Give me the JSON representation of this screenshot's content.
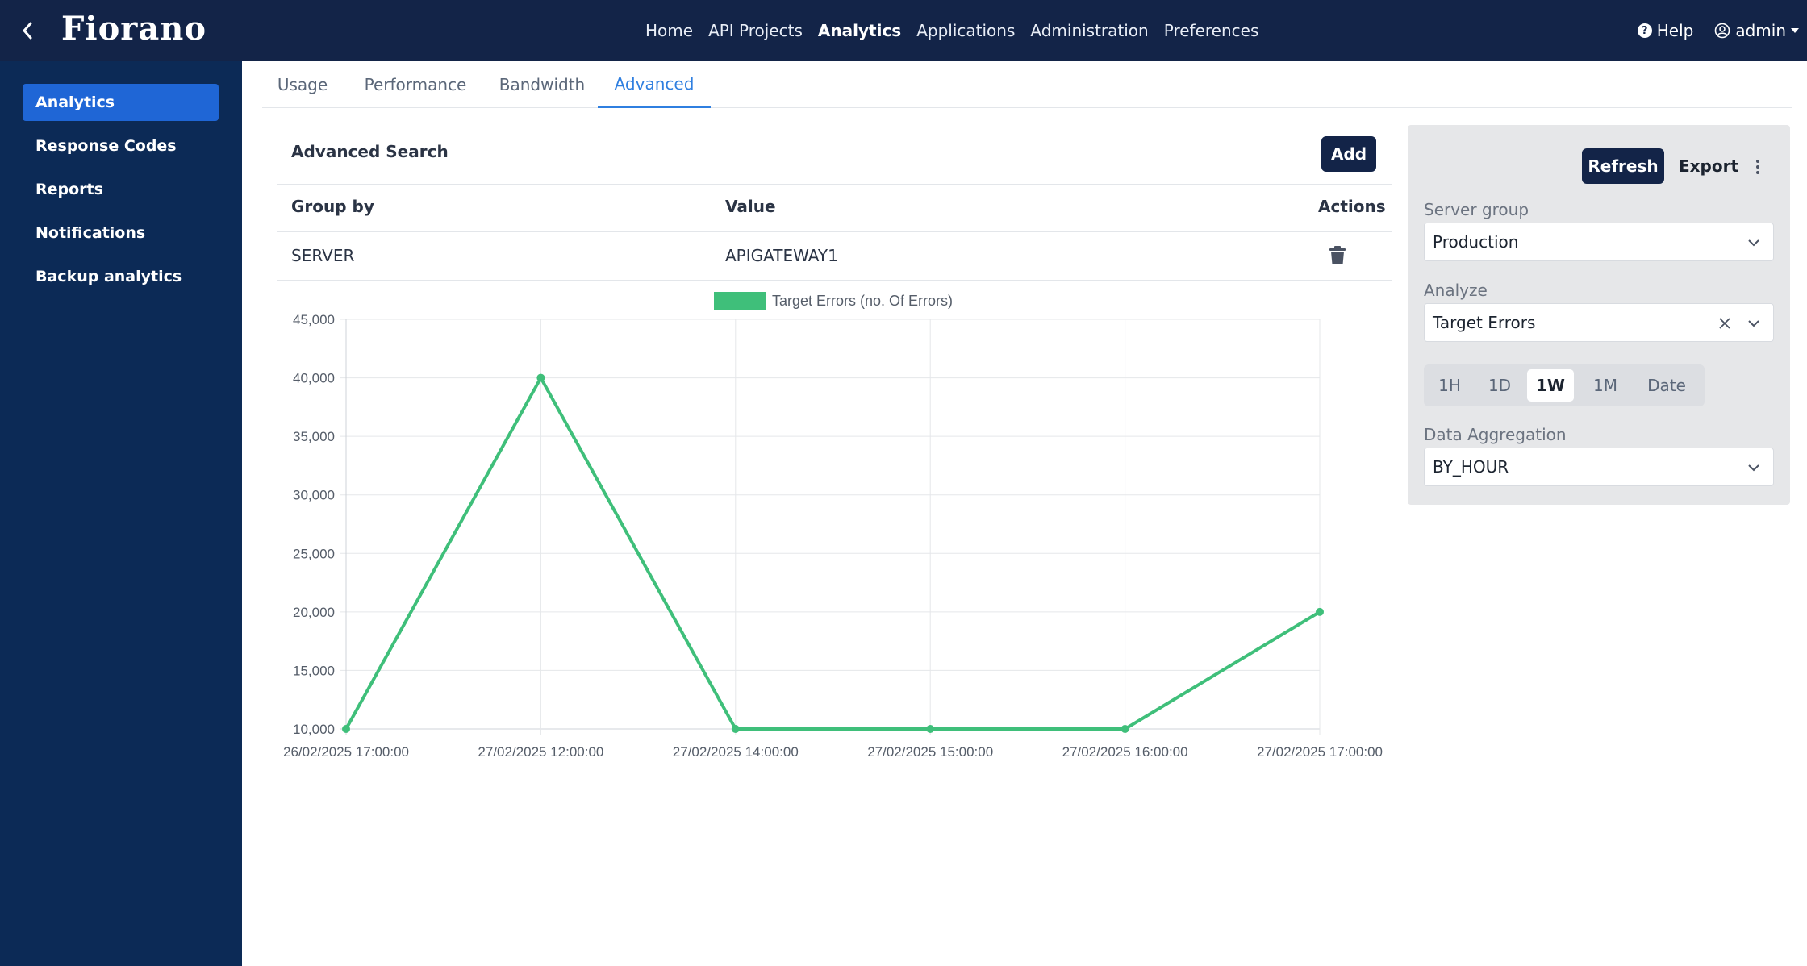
{
  "header": {
    "logo_text": "Fiorano",
    "nav": [
      "Home",
      "API Projects",
      "Analytics",
      "Applications",
      "Administration",
      "Preferences"
    ],
    "active_nav": "Analytics",
    "help_label": "Help",
    "user_label": "admin",
    "colors": {
      "bar": "#132448"
    }
  },
  "sidebar": {
    "items": [
      {
        "label": "Analytics",
        "active": true
      },
      {
        "label": "Response Codes"
      },
      {
        "label": "Reports"
      },
      {
        "label": "Notifications"
      },
      {
        "label": "Backup analytics"
      }
    ],
    "colors": {
      "background": "#0c2a56",
      "active": "#1f66d6"
    }
  },
  "tabs": [
    "Usage",
    "Performance",
    "Bandwidth",
    "Advanced"
  ],
  "active_tab": "Advanced",
  "advanced_search": {
    "title": "Advanced Search",
    "add_label": "Add",
    "columns": [
      "Group by",
      "Value",
      "Actions"
    ],
    "rows": [
      {
        "group_by": "SERVER",
        "value": "APIGATEWAY1",
        "action_icon": "trash-icon"
      }
    ]
  },
  "chart_data": {
    "type": "line",
    "x": [
      "26/02/2025 17:00:00",
      "27/02/2025 12:00:00",
      "27/02/2025 14:00:00",
      "27/02/2025 15:00:00",
      "27/02/2025 16:00:00",
      "27/02/2025 17:00:00"
    ],
    "series": [
      {
        "name": "Target Errors (no. Of Errors)",
        "values": [
          10000,
          40000,
          10000,
          10000,
          10000,
          20000
        ],
        "color": "#3fbf7a"
      }
    ],
    "ylim": [
      10000,
      45000
    ],
    "yticks": [
      "45,000",
      "40,000",
      "35,000",
      "30,000",
      "25,000",
      "20,000",
      "15,000",
      "10,000"
    ],
    "title": "",
    "xlabel": "",
    "ylabel": "",
    "grid": true,
    "legend": "top-center"
  },
  "panel": {
    "refresh_label": "Refresh",
    "export_label": "Export",
    "server_group_label": "Server group",
    "server_group_value": "Production",
    "analyze_label": "Analyze",
    "analyze_value": "Target Errors",
    "time_ranges": [
      "1H",
      "1D",
      "1W",
      "1M",
      "Date"
    ],
    "active_range": "1W",
    "aggregation_label": "Data Aggregation",
    "aggregation_value": "BY_HOUR"
  }
}
